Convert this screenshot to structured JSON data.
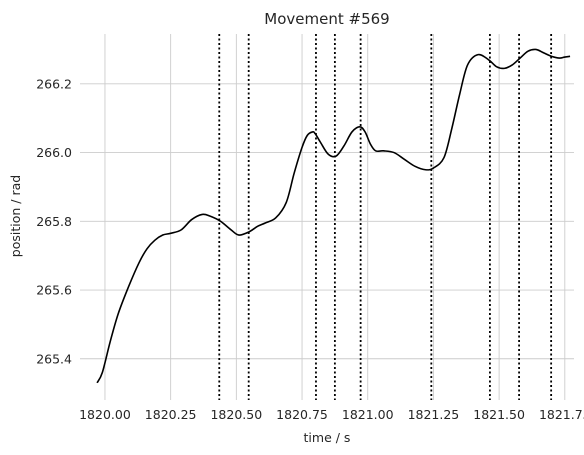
{
  "chart_data": {
    "type": "line",
    "title": "Movement #569",
    "xlabel": "time / s",
    "ylabel": "position / rad",
    "xlim": [
      1819.905,
      1821.785
    ],
    "ylim": [
      265.28,
      266.345
    ],
    "x_ticks": [
      1820.0,
      1820.25,
      1820.5,
      1820.75,
      1821.0,
      1821.25,
      1821.5,
      1821.75
    ],
    "x_tick_labels": [
      "1820.00",
      "1820.25",
      "1820.50",
      "1820.75",
      "1821.00",
      "1821.25",
      "1821.50",
      "1821.75"
    ],
    "y_ticks": [
      265.4,
      265.6,
      265.8,
      266.0,
      266.2
    ],
    "y_tick_labels": [
      "265.4",
      "265.6",
      "265.8",
      "266.0",
      "266.2"
    ],
    "grid": true,
    "colors": {
      "line": "#000000",
      "grid": "#cccccc",
      "markers": "#000000"
    },
    "vertical_markers": [
      1820.435,
      1820.547,
      1820.803,
      1820.875,
      1820.973,
      1821.242,
      1821.465,
      1821.576,
      1821.698
    ],
    "series": [
      {
        "x": [
          1819.97,
          1819.99,
          1820.02,
          1820.05,
          1820.09,
          1820.13,
          1820.16,
          1820.19,
          1820.22,
          1820.25,
          1820.29,
          1820.33,
          1820.37,
          1820.4,
          1820.44,
          1820.48,
          1820.51,
          1820.55,
          1820.58,
          1820.61,
          1820.65,
          1820.69,
          1820.72,
          1820.75,
          1820.77,
          1820.79,
          1820.8,
          1820.82,
          1820.85,
          1820.88,
          1820.91,
          1820.94,
          1820.97,
          1820.99,
          1821.01,
          1821.03,
          1821.06,
          1821.1,
          1821.14,
          1821.18,
          1821.22,
          1821.25,
          1821.29,
          1821.32,
          1821.35,
          1821.38,
          1821.42,
          1821.46,
          1821.49,
          1821.52,
          1821.55,
          1821.58,
          1821.61,
          1821.64,
          1821.67,
          1821.7,
          1821.73,
          1821.75,
          1821.77
        ],
        "y": [
          265.33,
          265.36,
          265.45,
          265.53,
          265.61,
          265.68,
          265.72,
          265.745,
          265.76,
          265.765,
          265.775,
          265.805,
          265.82,
          265.815,
          265.8,
          265.775,
          265.76,
          265.77,
          265.785,
          265.795,
          265.81,
          265.855,
          265.94,
          266.015,
          266.05,
          266.06,
          266.055,
          266.03,
          265.995,
          265.99,
          266.02,
          266.06,
          266.075,
          266.06,
          266.025,
          266.005,
          266.005,
          266.0,
          265.98,
          265.96,
          265.95,
          265.955,
          265.985,
          266.07,
          266.17,
          266.255,
          266.285,
          266.27,
          266.25,
          266.245,
          266.255,
          266.275,
          266.295,
          266.3,
          266.29,
          266.28,
          266.275,
          266.278,
          266.28
        ]
      }
    ]
  }
}
